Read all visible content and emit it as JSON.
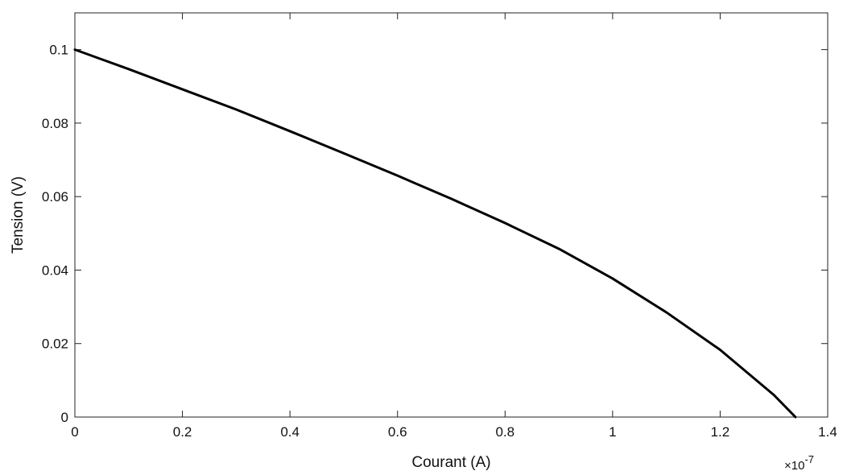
{
  "chart_data": {
    "type": "line",
    "title": "",
    "xlabel": "Courant (A)",
    "ylabel": "Tension (V)",
    "x_multiplier": {
      "base": "×10",
      "exponent": "-7"
    },
    "xlim": [
      0,
      1.4
    ],
    "ylim": [
      0,
      0.11
    ],
    "x_ticks": [
      0,
      0.2,
      0.4,
      0.6,
      0.8,
      1,
      1.2,
      1.4
    ],
    "x_tick_labels": [
      "0",
      "0.2",
      "0.4",
      "0.6",
      "0.8",
      "1",
      "1.2",
      "1.4"
    ],
    "y_ticks": [
      0,
      0.02,
      0.04,
      0.06,
      0.08,
      0.1
    ],
    "y_tick_labels": [
      "0",
      "0.02",
      "0.04",
      "0.06",
      "0.08",
      "0.1"
    ],
    "grid": false,
    "line_color": "#000000",
    "series": [
      {
        "x": [
          0,
          0.1,
          0.2,
          0.3,
          0.4,
          0.5,
          0.6,
          0.7,
          0.8,
          0.9,
          1.0,
          1.1,
          1.2,
          1.3,
          1.34
        ],
        "y": [
          0.1,
          0.0947,
          0.0892,
          0.0837,
          0.0778,
          0.0718,
          0.0657,
          0.0594,
          0.0528,
          0.0458,
          0.0377,
          0.0285,
          0.0183,
          0.006,
          0.0
        ]
      }
    ]
  }
}
